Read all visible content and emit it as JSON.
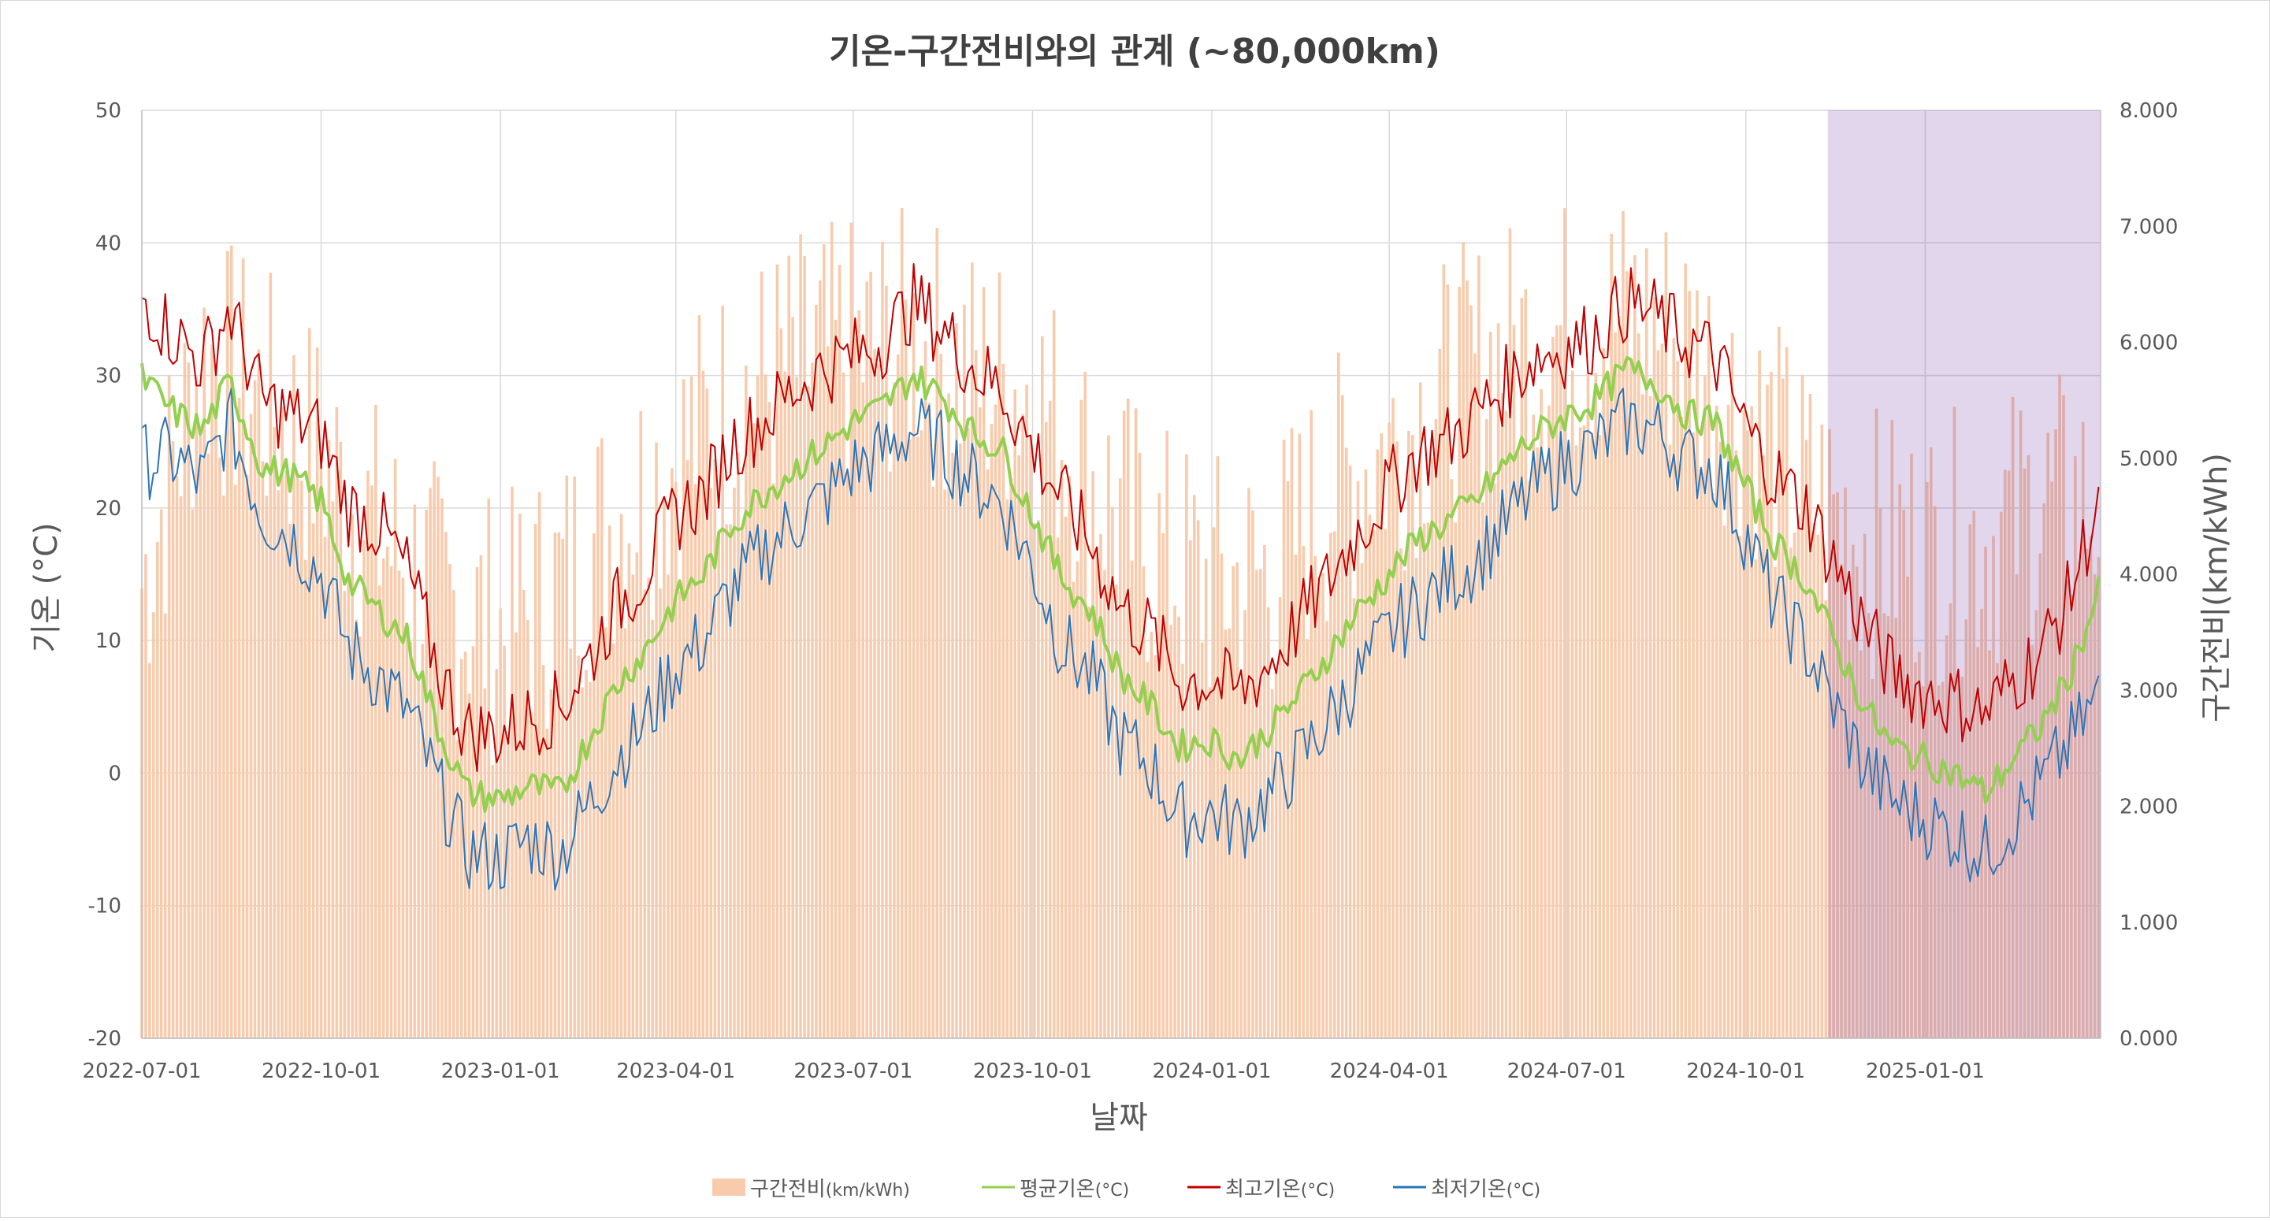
{
  "chart_data": {
    "type": "line",
    "title": "기온-구간전비와의 관계 (~80,000km)",
    "xlabel": "날짜",
    "ylabel_left": "기온 (°C)",
    "ylabel_right": "구간전비(km/kWh)",
    "ylim_left": [
      -20,
      50
    ],
    "ylim_right": [
      0,
      8
    ],
    "yticks_left": [
      "50",
      "40",
      "30",
      "20",
      "10",
      "0",
      "-10",
      "-20"
    ],
    "yticks_right": [
      "8.000",
      "7.000",
      "6.000",
      "5.000",
      "4.000",
      "3.000",
      "2.000",
      "1.000",
      "0.000"
    ],
    "x_tick_labels": [
      "2022-07-01",
      "2022-10-01",
      "2023-01-01",
      "2023-04-01",
      "2023-07-01",
      "2023-10-01",
      "2024-01-01",
      "2024-04-01",
      "2024-07-01",
      "2024-10-01",
      "2025-01-01"
    ],
    "x_range": [
      "2022-07-01",
      "2025-04-01"
    ],
    "grid": true,
    "legend_position": "bottom",
    "highlight_region": {
      "from": "2024-11-12",
      "to": "2025-04-01",
      "color": "#7030a0",
      "opacity": 0.2
    },
    "colors": {
      "efficiency": "#f8cbad",
      "avg": "#92d050",
      "max": "#c00000",
      "min": "#2e75b6"
    },
    "series": [
      {
        "name": "구간전비",
        "unit": "(km/kWh)",
        "axis": "right",
        "kind": "bar",
        "points": [
          [
            "2022-07-01",
            3.9
          ],
          [
            "2022-08-01",
            5.9
          ],
          [
            "2022-09-01",
            5.5
          ],
          [
            "2022-10-01",
            5.0
          ],
          [
            "2022-11-01",
            4.3
          ],
          [
            "2022-12-01",
            3.8
          ],
          [
            "2023-01-01",
            3.5
          ],
          [
            "2023-02-01",
            3.9
          ],
          [
            "2023-03-01",
            4.5
          ],
          [
            "2023-04-01",
            5.0
          ],
          [
            "2023-05-01",
            5.5
          ],
          [
            "2023-06-01",
            5.8
          ],
          [
            "2023-07-01",
            5.9
          ],
          [
            "2023-08-01",
            6.0
          ],
          [
            "2023-09-01",
            5.7
          ],
          [
            "2023-10-01",
            5.6
          ],
          [
            "2023-11-01",
            4.8
          ],
          [
            "2023-12-01",
            4.2
          ],
          [
            "2024-01-01",
            3.9
          ],
          [
            "2024-02-01",
            4.0
          ],
          [
            "2024-03-01",
            4.7
          ],
          [
            "2024-04-01",
            5.1
          ],
          [
            "2024-05-01",
            5.6
          ],
          [
            "2024-06-01",
            5.9
          ],
          [
            "2024-07-01",
            6.1
          ],
          [
            "2024-08-01",
            6.2
          ],
          [
            "2024-09-01",
            6.0
          ],
          [
            "2024-10-01",
            5.4
          ],
          [
            "2024-11-01",
            4.7
          ],
          [
            "2024-12-01",
            4.3
          ],
          [
            "2025-01-01",
            4.2
          ],
          [
            "2025-02-01",
            4.3
          ],
          [
            "2025-03-01",
            4.6
          ],
          [
            "2025-04-01",
            4.6
          ]
        ]
      },
      {
        "name": "평균기온",
        "unit": "(°C)",
        "axis": "left",
        "kind": "line",
        "points": [
          [
            "2022-07-01",
            29.8
          ],
          [
            "2022-07-15",
            27.5
          ],
          [
            "2022-08-01",
            25.8
          ],
          [
            "2022-08-15",
            29.5
          ],
          [
            "2022-09-01",
            23.0
          ],
          [
            "2022-09-15",
            22.5
          ],
          [
            "2022-10-01",
            20.5
          ],
          [
            "2022-10-15",
            14.5
          ],
          [
            "2022-11-01",
            12.0
          ],
          [
            "2022-11-15",
            10.0
          ],
          [
            "2022-12-01",
            3.0
          ],
          [
            "2022-12-15",
            -1.5
          ],
          [
            "2023-01-01",
            -2.0
          ],
          [
            "2023-01-15",
            -1.0
          ],
          [
            "2023-02-01",
            -1.5
          ],
          [
            "2023-02-15",
            2.5
          ],
          [
            "2023-03-01",
            6.5
          ],
          [
            "2023-03-15",
            9.0
          ],
          [
            "2023-04-01",
            13.0
          ],
          [
            "2023-04-15",
            15.0
          ],
          [
            "2023-05-01",
            19.0
          ],
          [
            "2023-05-15",
            21.0
          ],
          [
            "2023-06-01",
            23.0
          ],
          [
            "2023-06-15",
            24.5
          ],
          [
            "2023-07-01",
            26.5
          ],
          [
            "2023-07-15",
            27.5
          ],
          [
            "2023-08-01",
            30.0
          ],
          [
            "2023-08-15",
            28.5
          ],
          [
            "2023-09-01",
            25.5
          ],
          [
            "2023-09-15",
            24.5
          ],
          [
            "2023-10-01",
            19.5
          ],
          [
            "2023-10-15",
            15.0
          ],
          [
            "2023-11-01",
            12.0
          ],
          [
            "2023-11-15",
            7.5
          ],
          [
            "2023-12-01",
            5.0
          ],
          [
            "2023-12-15",
            2.0
          ],
          [
            "2024-01-01",
            2.5
          ],
          [
            "2024-01-15",
            1.0
          ],
          [
            "2024-02-01",
            3.5
          ],
          [
            "2024-02-15",
            6.0
          ],
          [
            "2024-03-01",
            9.0
          ],
          [
            "2024-03-15",
            12.0
          ],
          [
            "2024-04-01",
            15.0
          ],
          [
            "2024-04-15",
            17.5
          ],
          [
            "2024-05-01",
            19.0
          ],
          [
            "2024-05-15",
            20.5
          ],
          [
            "2024-06-01",
            23.5
          ],
          [
            "2024-06-15",
            25.5
          ],
          [
            "2024-07-01",
            27.0
          ],
          [
            "2024-07-15",
            28.0
          ],
          [
            "2024-08-01",
            30.5
          ],
          [
            "2024-08-15",
            29.5
          ],
          [
            "2024-09-01",
            27.0
          ],
          [
            "2024-09-15",
            26.5
          ],
          [
            "2024-10-01",
            21.5
          ],
          [
            "2024-10-15",
            17.5
          ],
          [
            "2024-11-01",
            14.5
          ],
          [
            "2024-11-15",
            10.0
          ],
          [
            "2024-12-01",
            5.0
          ],
          [
            "2024-12-15",
            2.0
          ],
          [
            "2025-01-01",
            1.0
          ],
          [
            "2025-01-15",
            0.0
          ],
          [
            "2025-02-01",
            -1.5
          ],
          [
            "2025-02-15",
            1.0
          ],
          [
            "2025-03-01",
            3.5
          ],
          [
            "2025-03-15",
            7.0
          ],
          [
            "2025-04-01",
            14.0
          ]
        ]
      },
      {
        "name": "최고기온",
        "unit": "(°C)",
        "axis": "left",
        "kind": "line",
        "points": [
          [
            "2022-07-01",
            36.0
          ],
          [
            "2022-07-15",
            33.5
          ],
          [
            "2022-08-01",
            31.0
          ],
          [
            "2022-08-15",
            35.0
          ],
          [
            "2022-09-01",
            28.0
          ],
          [
            "2022-09-15",
            27.0
          ],
          [
            "2022-10-01",
            25.5
          ],
          [
            "2022-10-15",
            20.0
          ],
          [
            "2022-11-01",
            18.5
          ],
          [
            "2022-11-15",
            15.0
          ],
          [
            "2022-12-01",
            7.5
          ],
          [
            "2022-12-15",
            3.0
          ],
          [
            "2023-01-01",
            3.0
          ],
          [
            "2023-01-15",
            4.0
          ],
          [
            "2023-02-01",
            5.0
          ],
          [
            "2023-02-15",
            8.5
          ],
          [
            "2023-03-01",
            12.5
          ],
          [
            "2023-03-15",
            15.0
          ],
          [
            "2023-04-01",
            19.5
          ],
          [
            "2023-04-15",
            21.0
          ],
          [
            "2023-05-01",
            25.0
          ],
          [
            "2023-05-15",
            26.5
          ],
          [
            "2023-06-01",
            29.0
          ],
          [
            "2023-06-15",
            30.5
          ],
          [
            "2023-07-01",
            31.5
          ],
          [
            "2023-07-15",
            32.5
          ],
          [
            "2023-08-01",
            35.5
          ],
          [
            "2023-08-15",
            33.5
          ],
          [
            "2023-09-01",
            30.5
          ],
          [
            "2023-09-15",
            29.0
          ],
          [
            "2023-10-01",
            24.5
          ],
          [
            "2023-10-15",
            21.0
          ],
          [
            "2023-11-01",
            17.0
          ],
          [
            "2023-11-15",
            12.5
          ],
          [
            "2023-12-01",
            10.5
          ],
          [
            "2023-12-15",
            7.0
          ],
          [
            "2024-01-01",
            7.0
          ],
          [
            "2024-01-15",
            6.0
          ],
          [
            "2024-02-01",
            8.5
          ],
          [
            "2024-02-15",
            11.5
          ],
          [
            "2024-03-01",
            14.5
          ],
          [
            "2024-03-15",
            18.0
          ],
          [
            "2024-04-01",
            21.5
          ],
          [
            "2024-04-15",
            24.0
          ],
          [
            "2024-05-01",
            25.0
          ],
          [
            "2024-05-15",
            27.0
          ],
          [
            "2024-06-01",
            29.5
          ],
          [
            "2024-06-15",
            31.5
          ],
          [
            "2024-07-01",
            32.0
          ],
          [
            "2024-07-15",
            33.0
          ],
          [
            "2024-08-01",
            35.5
          ],
          [
            "2024-08-15",
            34.5
          ],
          [
            "2024-09-01",
            32.5
          ],
          [
            "2024-09-15",
            31.5
          ],
          [
            "2024-10-01",
            26.0
          ],
          [
            "2024-10-15",
            22.5
          ],
          [
            "2024-11-01",
            20.0
          ],
          [
            "2024-11-15",
            16.0
          ],
          [
            "2024-12-01",
            11.0
          ],
          [
            "2024-12-15",
            7.5
          ],
          [
            "2025-01-01",
            6.0
          ],
          [
            "2025-01-15",
            5.5
          ],
          [
            "2025-02-01",
            4.5
          ],
          [
            "2025-02-15",
            7.0
          ],
          [
            "2025-03-01",
            9.0
          ],
          [
            "2025-03-15",
            13.0
          ],
          [
            "2025-04-01",
            21.0
          ]
        ]
      },
      {
        "name": "최저기온",
        "unit": "(°C)",
        "axis": "left",
        "kind": "line",
        "points": [
          [
            "2022-07-01",
            23.5
          ],
          [
            "2022-07-15",
            24.0
          ],
          [
            "2022-08-01",
            22.0
          ],
          [
            "2022-08-15",
            26.5
          ],
          [
            "2022-09-01",
            19.5
          ],
          [
            "2022-09-15",
            18.0
          ],
          [
            "2022-10-01",
            15.0
          ],
          [
            "2022-10-15",
            9.5
          ],
          [
            "2022-11-01",
            7.0
          ],
          [
            "2022-11-15",
            4.5
          ],
          [
            "2022-12-01",
            -1.5
          ],
          [
            "2022-12-15",
            -6.0
          ],
          [
            "2023-01-01",
            -6.5
          ],
          [
            "2023-01-15",
            -5.0
          ],
          [
            "2023-02-01",
            -6.0
          ],
          [
            "2023-02-15",
            -2.5
          ],
          [
            "2023-03-01",
            1.0
          ],
          [
            "2023-03-15",
            3.5
          ],
          [
            "2023-04-01",
            8.0
          ],
          [
            "2023-04-15",
            10.0
          ],
          [
            "2023-05-01",
            14.0
          ],
          [
            "2023-05-15",
            16.5
          ],
          [
            "2023-06-01",
            19.0
          ],
          [
            "2023-06-15",
            20.5
          ],
          [
            "2023-07-01",
            23.0
          ],
          [
            "2023-07-15",
            24.0
          ],
          [
            "2023-08-01",
            26.0
          ],
          [
            "2023-08-15",
            24.5
          ],
          [
            "2023-09-01",
            22.0
          ],
          [
            "2023-09-15",
            20.5
          ],
          [
            "2023-10-01",
            15.5
          ],
          [
            "2023-10-15",
            10.0
          ],
          [
            "2023-11-01",
            7.0
          ],
          [
            "2023-11-15",
            2.5
          ],
          [
            "2023-12-01",
            0.5
          ],
          [
            "2023-12-15",
            -3.5
          ],
          [
            "2024-01-01",
            -3.0
          ],
          [
            "2024-01-15",
            -4.0
          ],
          [
            "2024-02-01",
            -1.5
          ],
          [
            "2024-02-15",
            1.0
          ],
          [
            "2024-03-01",
            4.0
          ],
          [
            "2024-03-15",
            7.0
          ],
          [
            "2024-04-01",
            10.5
          ],
          [
            "2024-04-15",
            12.5
          ],
          [
            "2024-05-01",
            14.5
          ],
          [
            "2024-05-15",
            16.0
          ],
          [
            "2024-06-01",
            19.0
          ],
          [
            "2024-06-15",
            21.5
          ],
          [
            "2024-07-01",
            23.5
          ],
          [
            "2024-07-15",
            24.5
          ],
          [
            "2024-08-01",
            26.5
          ],
          [
            "2024-08-15",
            26.0
          ],
          [
            "2024-09-01",
            23.5
          ],
          [
            "2024-09-15",
            23.0
          ],
          [
            "2024-10-01",
            18.0
          ],
          [
            "2024-10-15",
            13.0
          ],
          [
            "2024-11-01",
            9.5
          ],
          [
            "2024-11-15",
            5.0
          ],
          [
            "2024-12-01",
            0.5
          ],
          [
            "2024-12-15",
            -2.0
          ],
          [
            "2025-01-01",
            -3.5
          ],
          [
            "2025-01-15",
            -4.5
          ],
          [
            "2025-02-01",
            -6.0
          ],
          [
            "2025-02-15",
            -3.5
          ],
          [
            "2025-03-01",
            -1.0
          ],
          [
            "2025-03-15",
            2.0
          ],
          [
            "2025-04-01",
            6.0
          ]
        ]
      }
    ]
  }
}
